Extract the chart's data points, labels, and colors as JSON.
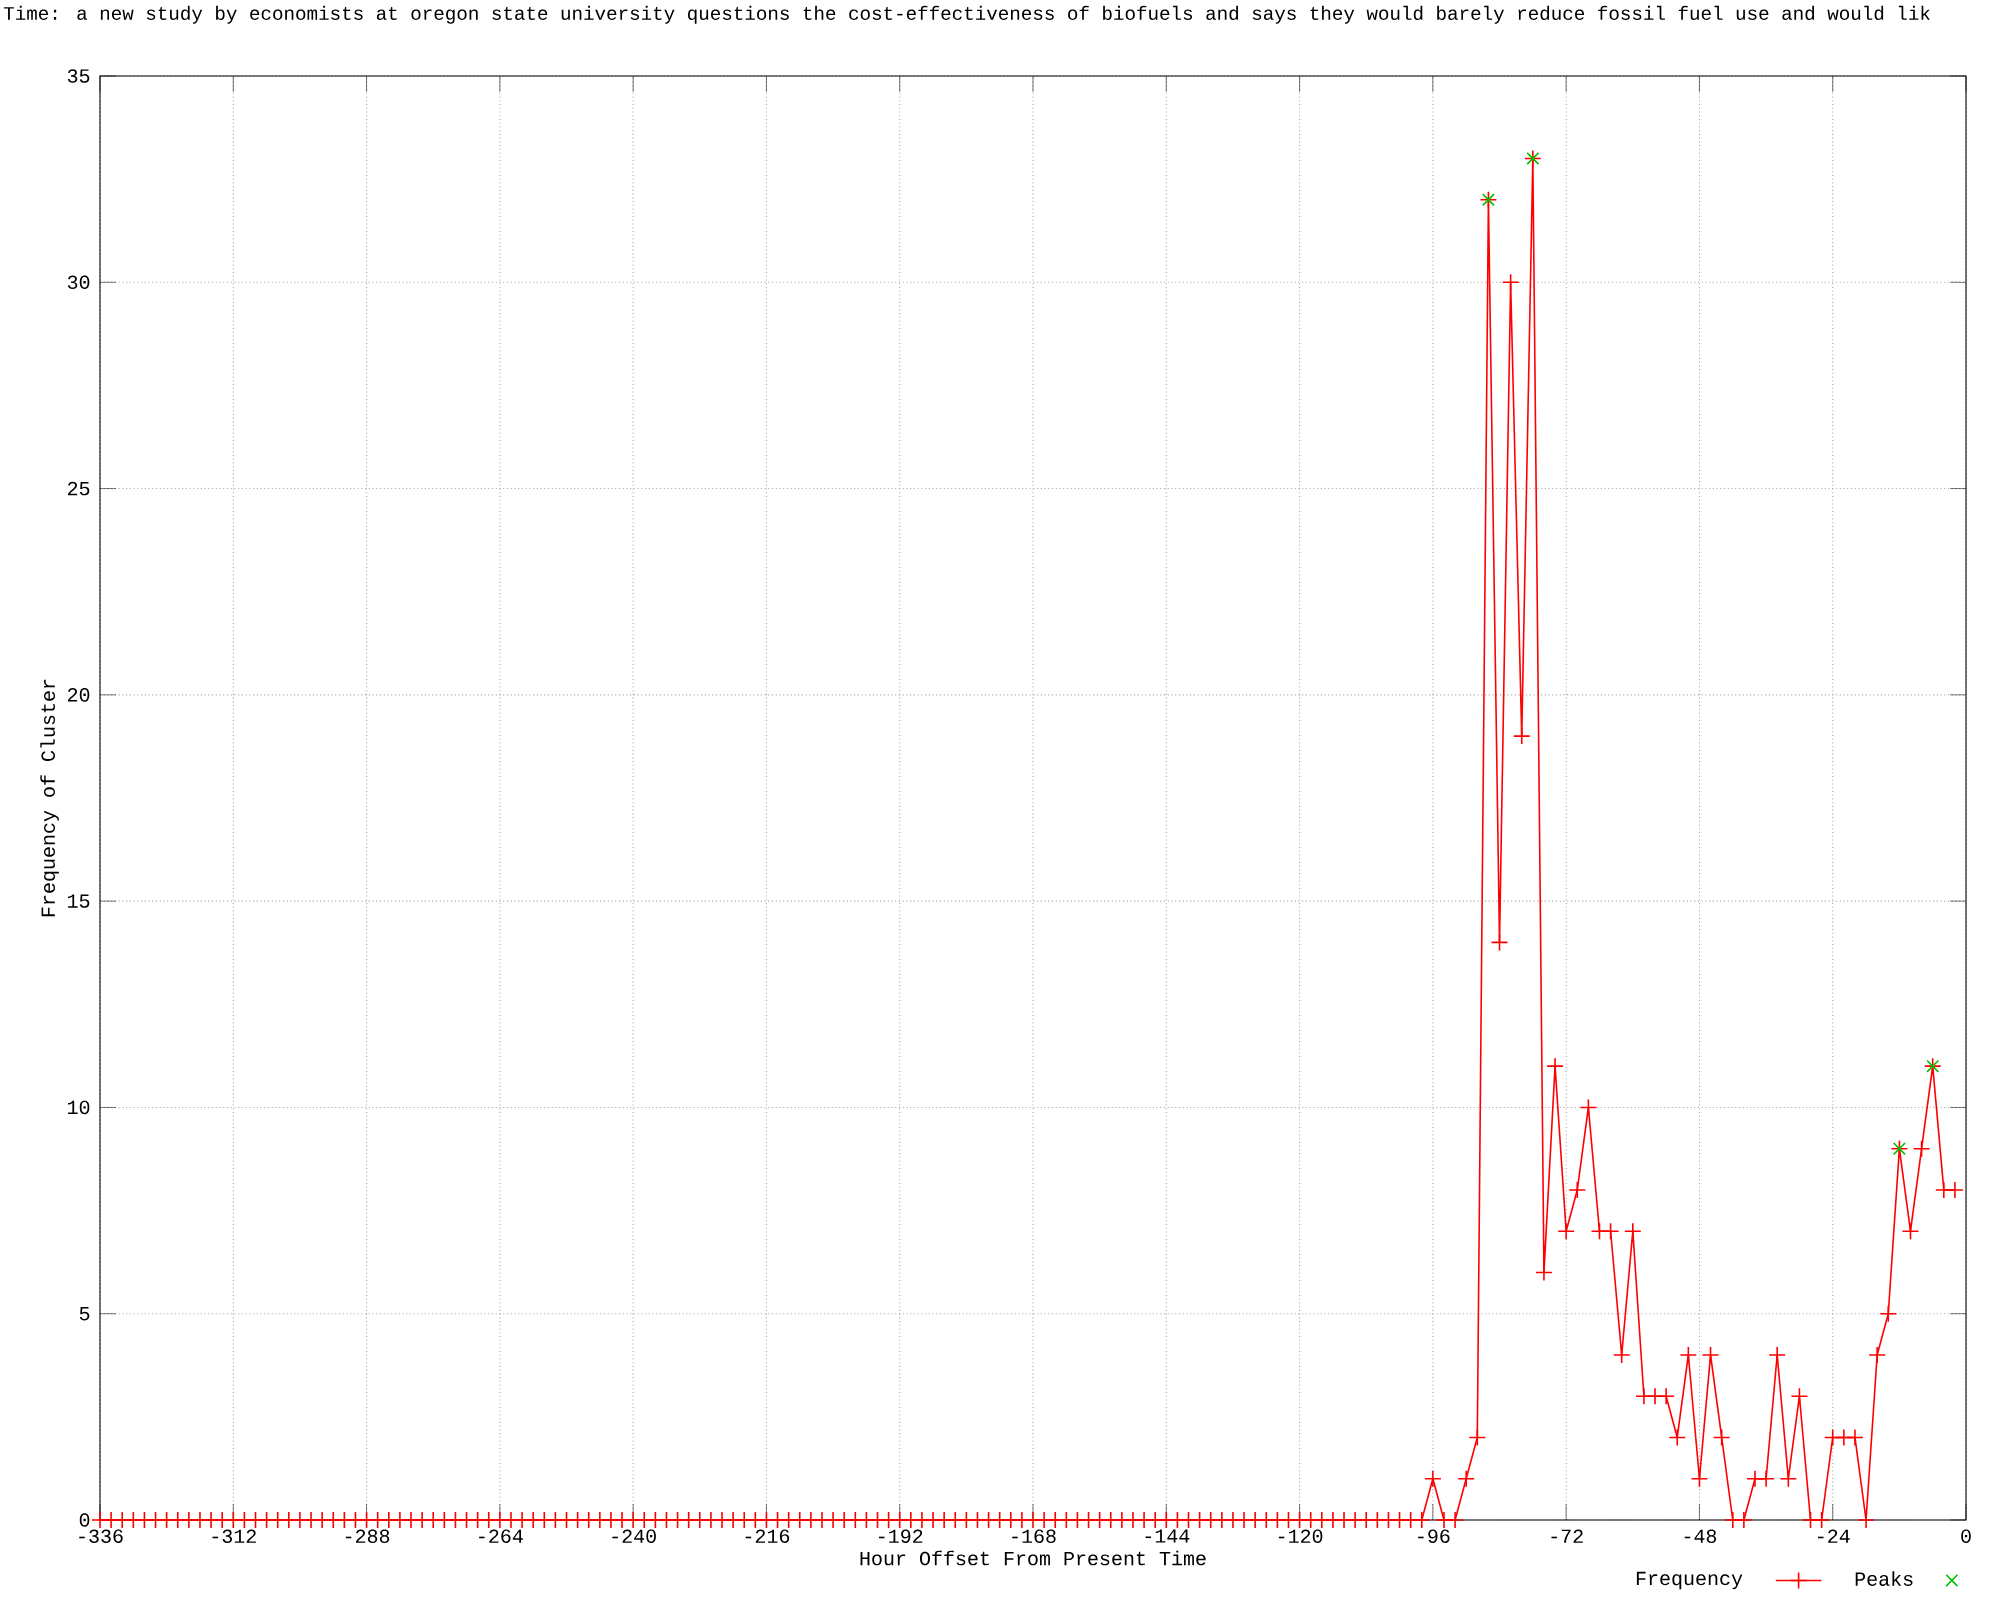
{
  "chart_data": {
    "type": "line",
    "title": "Time: a new study by economists at oregon state university questions the cost-effectiveness of biofuels and says they would barely reduce fossil fuel use and would lik",
    "xlabel": "Hour Offset From Present Time",
    "ylabel": "Frequency of Cluster",
    "xlim": [
      -336,
      0
    ],
    "ylim": [
      0,
      35
    ],
    "xticks": [
      -336,
      -312,
      -288,
      -264,
      -240,
      -216,
      -192,
      -168,
      -144,
      -120,
      -96,
      -72,
      -48,
      -24,
      0
    ],
    "yticks": [
      0,
      5,
      10,
      15,
      20,
      25,
      30,
      35
    ],
    "grid": true,
    "legend": "bottom right",
    "line_style": "solid",
    "series": [
      {
        "name": "Frequency",
        "color": "#ff0000",
        "marker": "cross",
        "x": [
          -336,
          -334,
          -332,
          -330,
          -328,
          -326,
          -324,
          -322,
          -320,
          -318,
          -316,
          -314,
          -312,
          -310,
          -308,
          -306,
          -304,
          -302,
          -300,
          -298,
          -296,
          -294,
          -292,
          -290,
          -288,
          -286,
          -284,
          -282,
          -280,
          -278,
          -276,
          -274,
          -272,
          -270,
          -268,
          -266,
          -264,
          -262,
          -260,
          -258,
          -256,
          -254,
          -252,
          -250,
          -248,
          -246,
          -244,
          -242,
          -240,
          -238,
          -236,
          -234,
          -232,
          -230,
          -228,
          -226,
          -224,
          -222,
          -220,
          -218,
          -216,
          -214,
          -212,
          -210,
          -208,
          -206,
          -204,
          -202,
          -200,
          -198,
          -196,
          -194,
          -192,
          -190,
          -188,
          -186,
          -184,
          -182,
          -180,
          -178,
          -176,
          -174,
          -172,
          -170,
          -168,
          -166,
          -164,
          -162,
          -160,
          -158,
          -156,
          -154,
          -152,
          -150,
          -148,
          -146,
          -144,
          -142,
          -140,
          -138,
          -136,
          -134,
          -132,
          -130,
          -128,
          -126,
          -124,
          -122,
          -120,
          -118,
          -116,
          -114,
          -112,
          -110,
          -108,
          -106,
          -104,
          -102,
          -100,
          -98,
          -96,
          -94,
          -92,
          -90,
          -88,
          -86,
          -84,
          -82,
          -80,
          -78,
          -76,
          -74,
          -72,
          -70,
          -68,
          -66,
          -64,
          -62,
          -60,
          -58,
          -56,
          -54,
          -52,
          -50,
          -48,
          -46,
          -44,
          -42,
          -40,
          -38,
          -36,
          -34,
          -32,
          -30,
          -28,
          -26,
          -24,
          -22,
          -20,
          -18,
          -16,
          -14,
          -12,
          -10,
          -8,
          -6,
          -4,
          -2
        ],
        "values": [
          0,
          0,
          0,
          0,
          0,
          0,
          0,
          0,
          0,
          0,
          0,
          0,
          0,
          0,
          0,
          0,
          0,
          0,
          0,
          0,
          0,
          0,
          0,
          0,
          0,
          0,
          0,
          0,
          0,
          0,
          0,
          0,
          0,
          0,
          0,
          0,
          0,
          0,
          0,
          0,
          0,
          0,
          0,
          0,
          0,
          0,
          0,
          0,
          0,
          0,
          0,
          0,
          0,
          0,
          0,
          0,
          0,
          0,
          0,
          0,
          0,
          0,
          0,
          0,
          0,
          0,
          0,
          0,
          0,
          0,
          0,
          0,
          0,
          0,
          0,
          0,
          0,
          0,
          0,
          0,
          0,
          0,
          0,
          0,
          0,
          0,
          0,
          0,
          0,
          0,
          0,
          0,
          0,
          0,
          0,
          0,
          0,
          0,
          0,
          0,
          0,
          0,
          0,
          0,
          0,
          0,
          0,
          0,
          0,
          0,
          0,
          0,
          0,
          0,
          0,
          0,
          0,
          0,
          0,
          0,
          1,
          0,
          0,
          1,
          2,
          32,
          14,
          30,
          19,
          33,
          6,
          11,
          7,
          8,
          10,
          7,
          7,
          4,
          7,
          3,
          3,
          3,
          2,
          4,
          1,
          4,
          2,
          0,
          0,
          1,
          1,
          4,
          1,
          3,
          0,
          0,
          2,
          2,
          2,
          0,
          4,
          5,
          9,
          7,
          9,
          11,
          8,
          8
        ]
      },
      {
        "name": "Peaks",
        "type": "scatter",
        "color": "#00c000",
        "marker": "cross",
        "x": [
          -86,
          -78,
          -12,
          -6
        ],
        "values": [
          32,
          33,
          9,
          11
        ]
      }
    ]
  }
}
